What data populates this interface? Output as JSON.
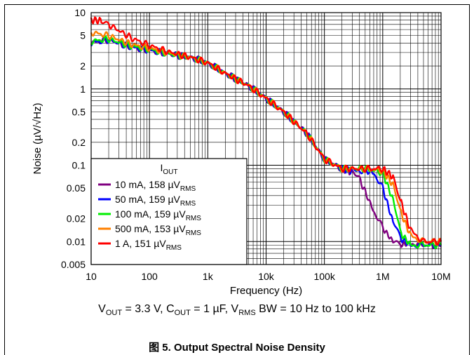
{
  "chart_data": {
    "type": "line",
    "xlabel": "Frequency (Hz)",
    "ylabel": "Noise (µV/√Hz)",
    "x_scale": "log",
    "y_scale": "log",
    "xlim": [
      10,
      10000000
    ],
    "ylim": [
      0.005,
      10
    ],
    "x_ticks": [
      "10",
      "100",
      "1k",
      "10k",
      "100k",
      "1M",
      "10M"
    ],
    "y_ticks": [
      "10",
      "5",
      "2",
      "1",
      "0.5",
      "0.2",
      "0.1",
      "0.05",
      "0.02",
      "0.01",
      "0.005"
    ],
    "grid": true,
    "legend": {
      "title": "I",
      "title_sub": "OUT",
      "placement": "bottom-left",
      "entries": [
        {
          "main": "10 mA, 158 µV",
          "sub": "RMS"
        },
        {
          "main": "50 mA, 159 µV",
          "sub": "RMS"
        },
        {
          "main": "100 mA, 159 µV",
          "sub": "RMS"
        },
        {
          "main": "500 mA, 153 µV",
          "sub": "RMS"
        },
        {
          "main": "1 A, 151 µV",
          "sub": "RMS"
        }
      ]
    },
    "series": [
      {
        "color": "#800080",
        "x": [
          10,
          20,
          50,
          100,
          200,
          500,
          1000,
          2000,
          5000,
          10000,
          20000,
          50000,
          100000,
          200000,
          300000,
          400000,
          500000,
          700000,
          1000000,
          1500000,
          2000000,
          3000000,
          5000000,
          10000000
        ],
        "y": [
          4.0,
          4.4,
          3.5,
          3.2,
          2.9,
          2.6,
          2.2,
          1.6,
          1.1,
          0.75,
          0.5,
          0.26,
          0.12,
          0.09,
          0.08,
          0.065,
          0.045,
          0.025,
          0.015,
          0.01,
          0.009,
          0.0095,
          0.009,
          0.009
        ]
      },
      {
        "color": "#0000ff",
        "x": [
          10,
          20,
          50,
          100,
          200,
          500,
          1000,
          2000,
          5000,
          10000,
          20000,
          50000,
          100000,
          200000,
          300000,
          500000,
          700000,
          1000000,
          1500000,
          2000000,
          3000000,
          5000000,
          10000000
        ],
        "y": [
          4.0,
          4.4,
          3.5,
          3.2,
          2.9,
          2.6,
          2.2,
          1.6,
          1.1,
          0.75,
          0.5,
          0.26,
          0.12,
          0.09,
          0.085,
          0.085,
          0.08,
          0.05,
          0.018,
          0.011,
          0.009,
          0.009,
          0.009
        ]
      },
      {
        "color": "#00ee00",
        "x": [
          10,
          20,
          50,
          100,
          200,
          500,
          1000,
          2000,
          5000,
          10000,
          20000,
          50000,
          100000,
          200000,
          500000,
          1000000,
          1500000,
          2000000,
          3000000,
          5000000,
          10000000
        ],
        "y": [
          4.2,
          4.5,
          3.6,
          3.3,
          2.9,
          2.6,
          2.2,
          1.6,
          1.1,
          0.75,
          0.5,
          0.26,
          0.12,
          0.09,
          0.09,
          0.08,
          0.035,
          0.013,
          0.009,
          0.009,
          0.009
        ]
      },
      {
        "color": "#ff8000",
        "x": [
          10,
          20,
          50,
          100,
          200,
          500,
          1000,
          2000,
          5000,
          10000,
          20000,
          50000,
          100000,
          200000,
          500000,
          1000000,
          1500000,
          2000000,
          3000000,
          5000000,
          10000000
        ],
        "y": [
          5.5,
          5.0,
          3.8,
          3.4,
          3.0,
          2.6,
          2.2,
          1.6,
          1.1,
          0.75,
          0.5,
          0.26,
          0.12,
          0.09,
          0.09,
          0.085,
          0.055,
          0.025,
          0.012,
          0.01,
          0.01
        ]
      },
      {
        "color": "#ff0000",
        "x": [
          10,
          15,
          20,
          50,
          100,
          200,
          500,
          1000,
          2000,
          5000,
          10000,
          20000,
          50000,
          100000,
          200000,
          500000,
          1000000,
          1500000,
          2000000,
          3000000,
          5000000,
          10000000
        ],
        "y": [
          8.0,
          7.8,
          7.0,
          4.6,
          3.7,
          3.1,
          2.6,
          2.2,
          1.6,
          1.1,
          0.75,
          0.5,
          0.26,
          0.12,
          0.09,
          0.09,
          0.09,
          0.07,
          0.035,
          0.014,
          0.01,
          0.01
        ]
      }
    ]
  },
  "conditions": {
    "v": "V",
    "v_sub": "OUT",
    "v_val": " = 3.3 V, C",
    "c_sub": "OUT",
    "c_val": " = 1 µF, V",
    "bw_sub": "RMS",
    "bw_val": " BW = 10 Hz to 100 kHz"
  },
  "caption": "图 5. Output Spectral Noise Density"
}
